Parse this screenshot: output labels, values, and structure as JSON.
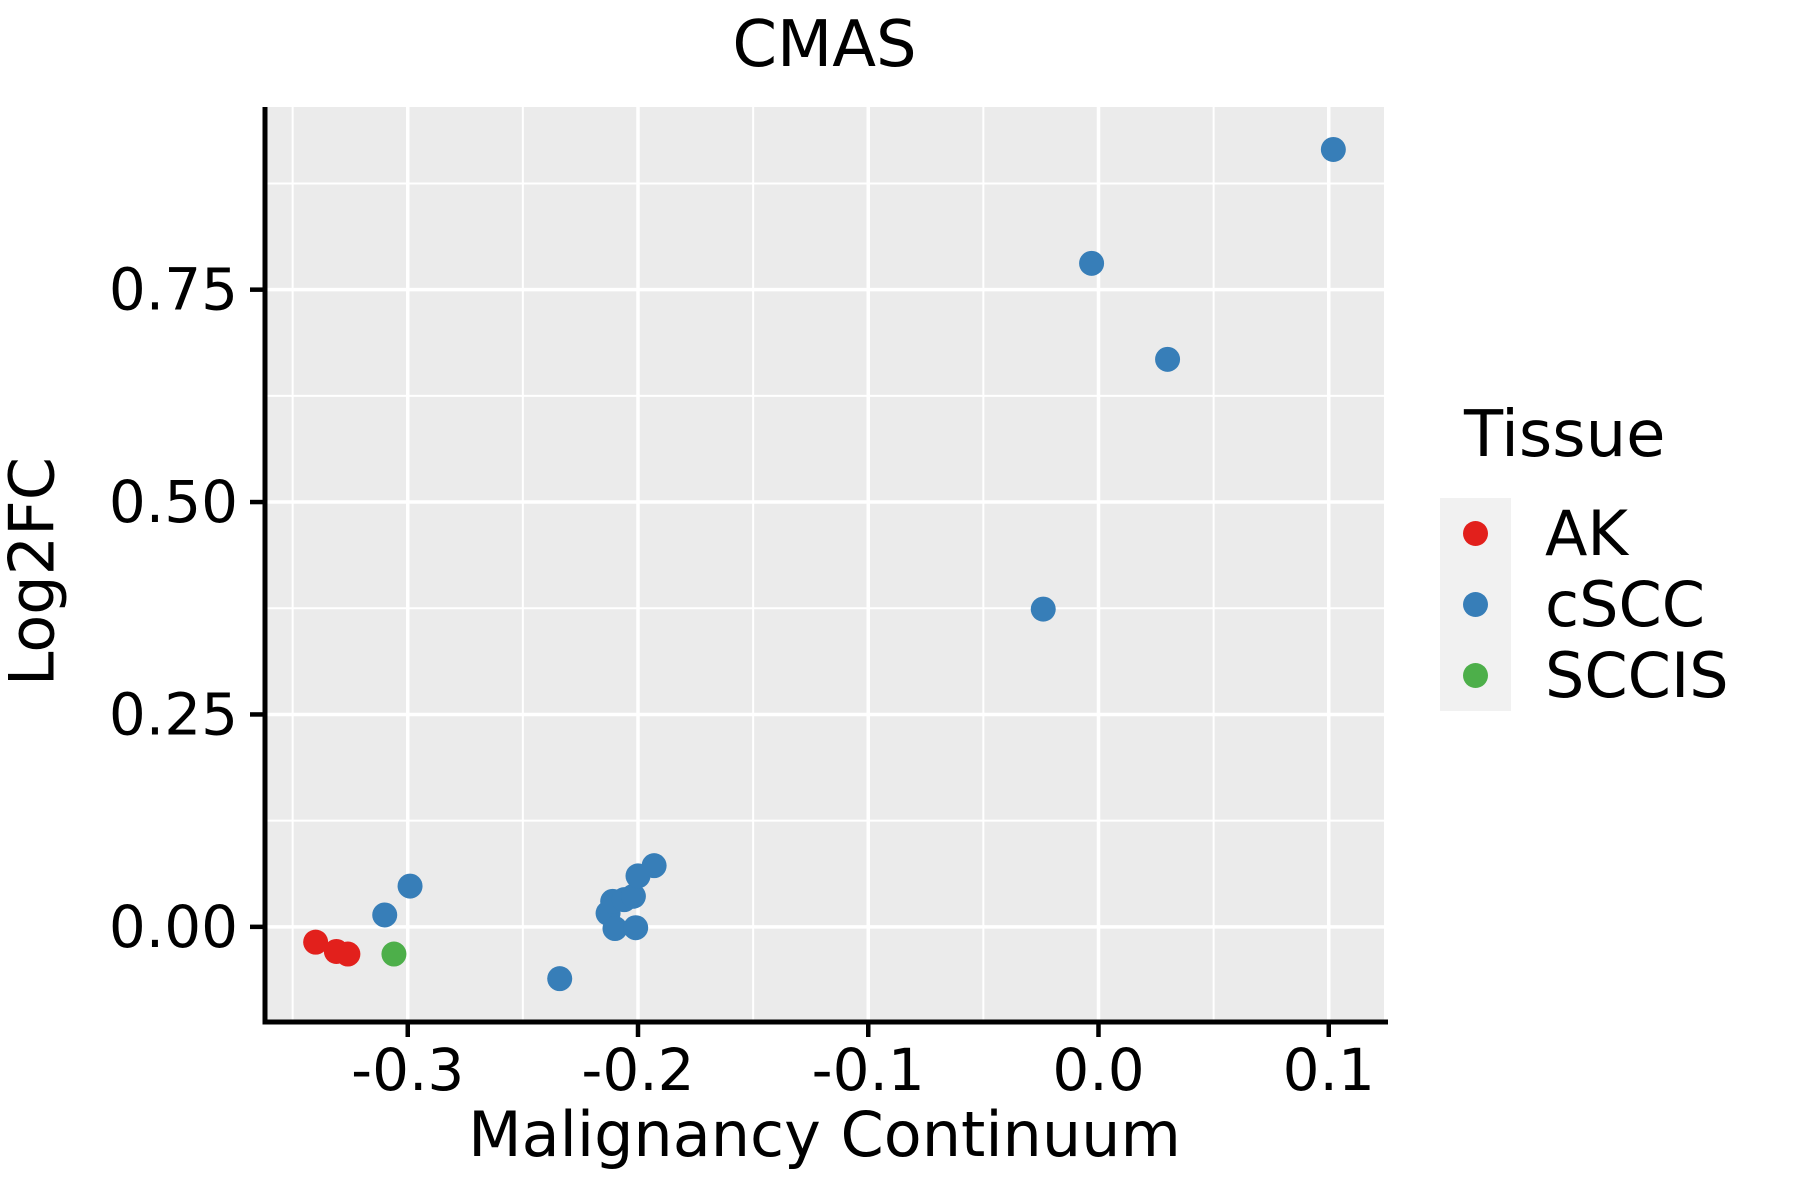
{
  "title": "CMAS",
  "legend": {
    "title": "Tissue",
    "entries": [
      {
        "label": "AK",
        "color": "#E2201C"
      },
      {
        "label": "cSCC",
        "color": "#377EB8"
      },
      {
        "label": "SCCIS",
        "color": "#4DAF4A"
      }
    ]
  },
  "axes": {
    "x": {
      "label": "Malignancy Continuum",
      "tick_labels": [
        "-0.3",
        "-0.2",
        "-0.1",
        "0.0",
        "0.1"
      ]
    },
    "y": {
      "label": "Log2FC",
      "tick_labels": [
        "0.00",
        "0.25",
        "0.50",
        "0.75"
      ]
    }
  },
  "chart_data": {
    "type": "scatter",
    "title": "CMAS",
    "xlabel": "Malignancy Continuum",
    "ylabel": "Log2FC",
    "xlim": [
      -0.362,
      0.124
    ],
    "ylim": [
      -0.112,
      0.965
    ],
    "x_major_ticks": [
      -0.3,
      -0.2,
      -0.1,
      0.0,
      0.1
    ],
    "x_minor_ticks": [
      -0.35,
      -0.25,
      -0.15,
      -0.05,
      0.05
    ],
    "y_major_ticks": [
      0.0,
      0.25,
      0.5,
      0.75
    ],
    "y_minor_ticks": [
      0.125,
      0.375,
      0.625,
      0.875
    ],
    "grid": true,
    "legend_position": "right",
    "panel_background": "#EBEBEB",
    "grid_color": "#FFFFFF",
    "axis_color": "#000000",
    "point_radius": 12.5,
    "series": [
      {
        "name": "AK",
        "color": "#E2201C",
        "points": [
          [
            -0.34,
            -0.018
          ],
          [
            -0.331,
            -0.029
          ],
          [
            -0.326,
            -0.032
          ]
        ]
      },
      {
        "name": "cSCC",
        "color": "#377EB8",
        "points": [
          [
            -0.31,
            0.014
          ],
          [
            -0.299,
            0.048
          ],
          [
            -0.234,
            -0.061
          ],
          [
            -0.213,
            0.016
          ],
          [
            -0.211,
            0.03
          ],
          [
            -0.206,
            0.032
          ],
          [
            -0.202,
            0.036
          ],
          [
            -0.21,
            -0.002
          ],
          [
            -0.201,
            -0.001
          ],
          [
            -0.2,
            0.06
          ],
          [
            -0.193,
            0.072
          ],
          [
            -0.024,
            0.374
          ],
          [
            -0.003,
            0.781
          ],
          [
            0.03,
            0.668
          ],
          [
            0.102,
            0.915
          ]
        ]
      },
      {
        "name": "SCCIS",
        "color": "#4DAF4A",
        "points": [
          [
            -0.306,
            -0.032
          ]
        ]
      }
    ]
  }
}
